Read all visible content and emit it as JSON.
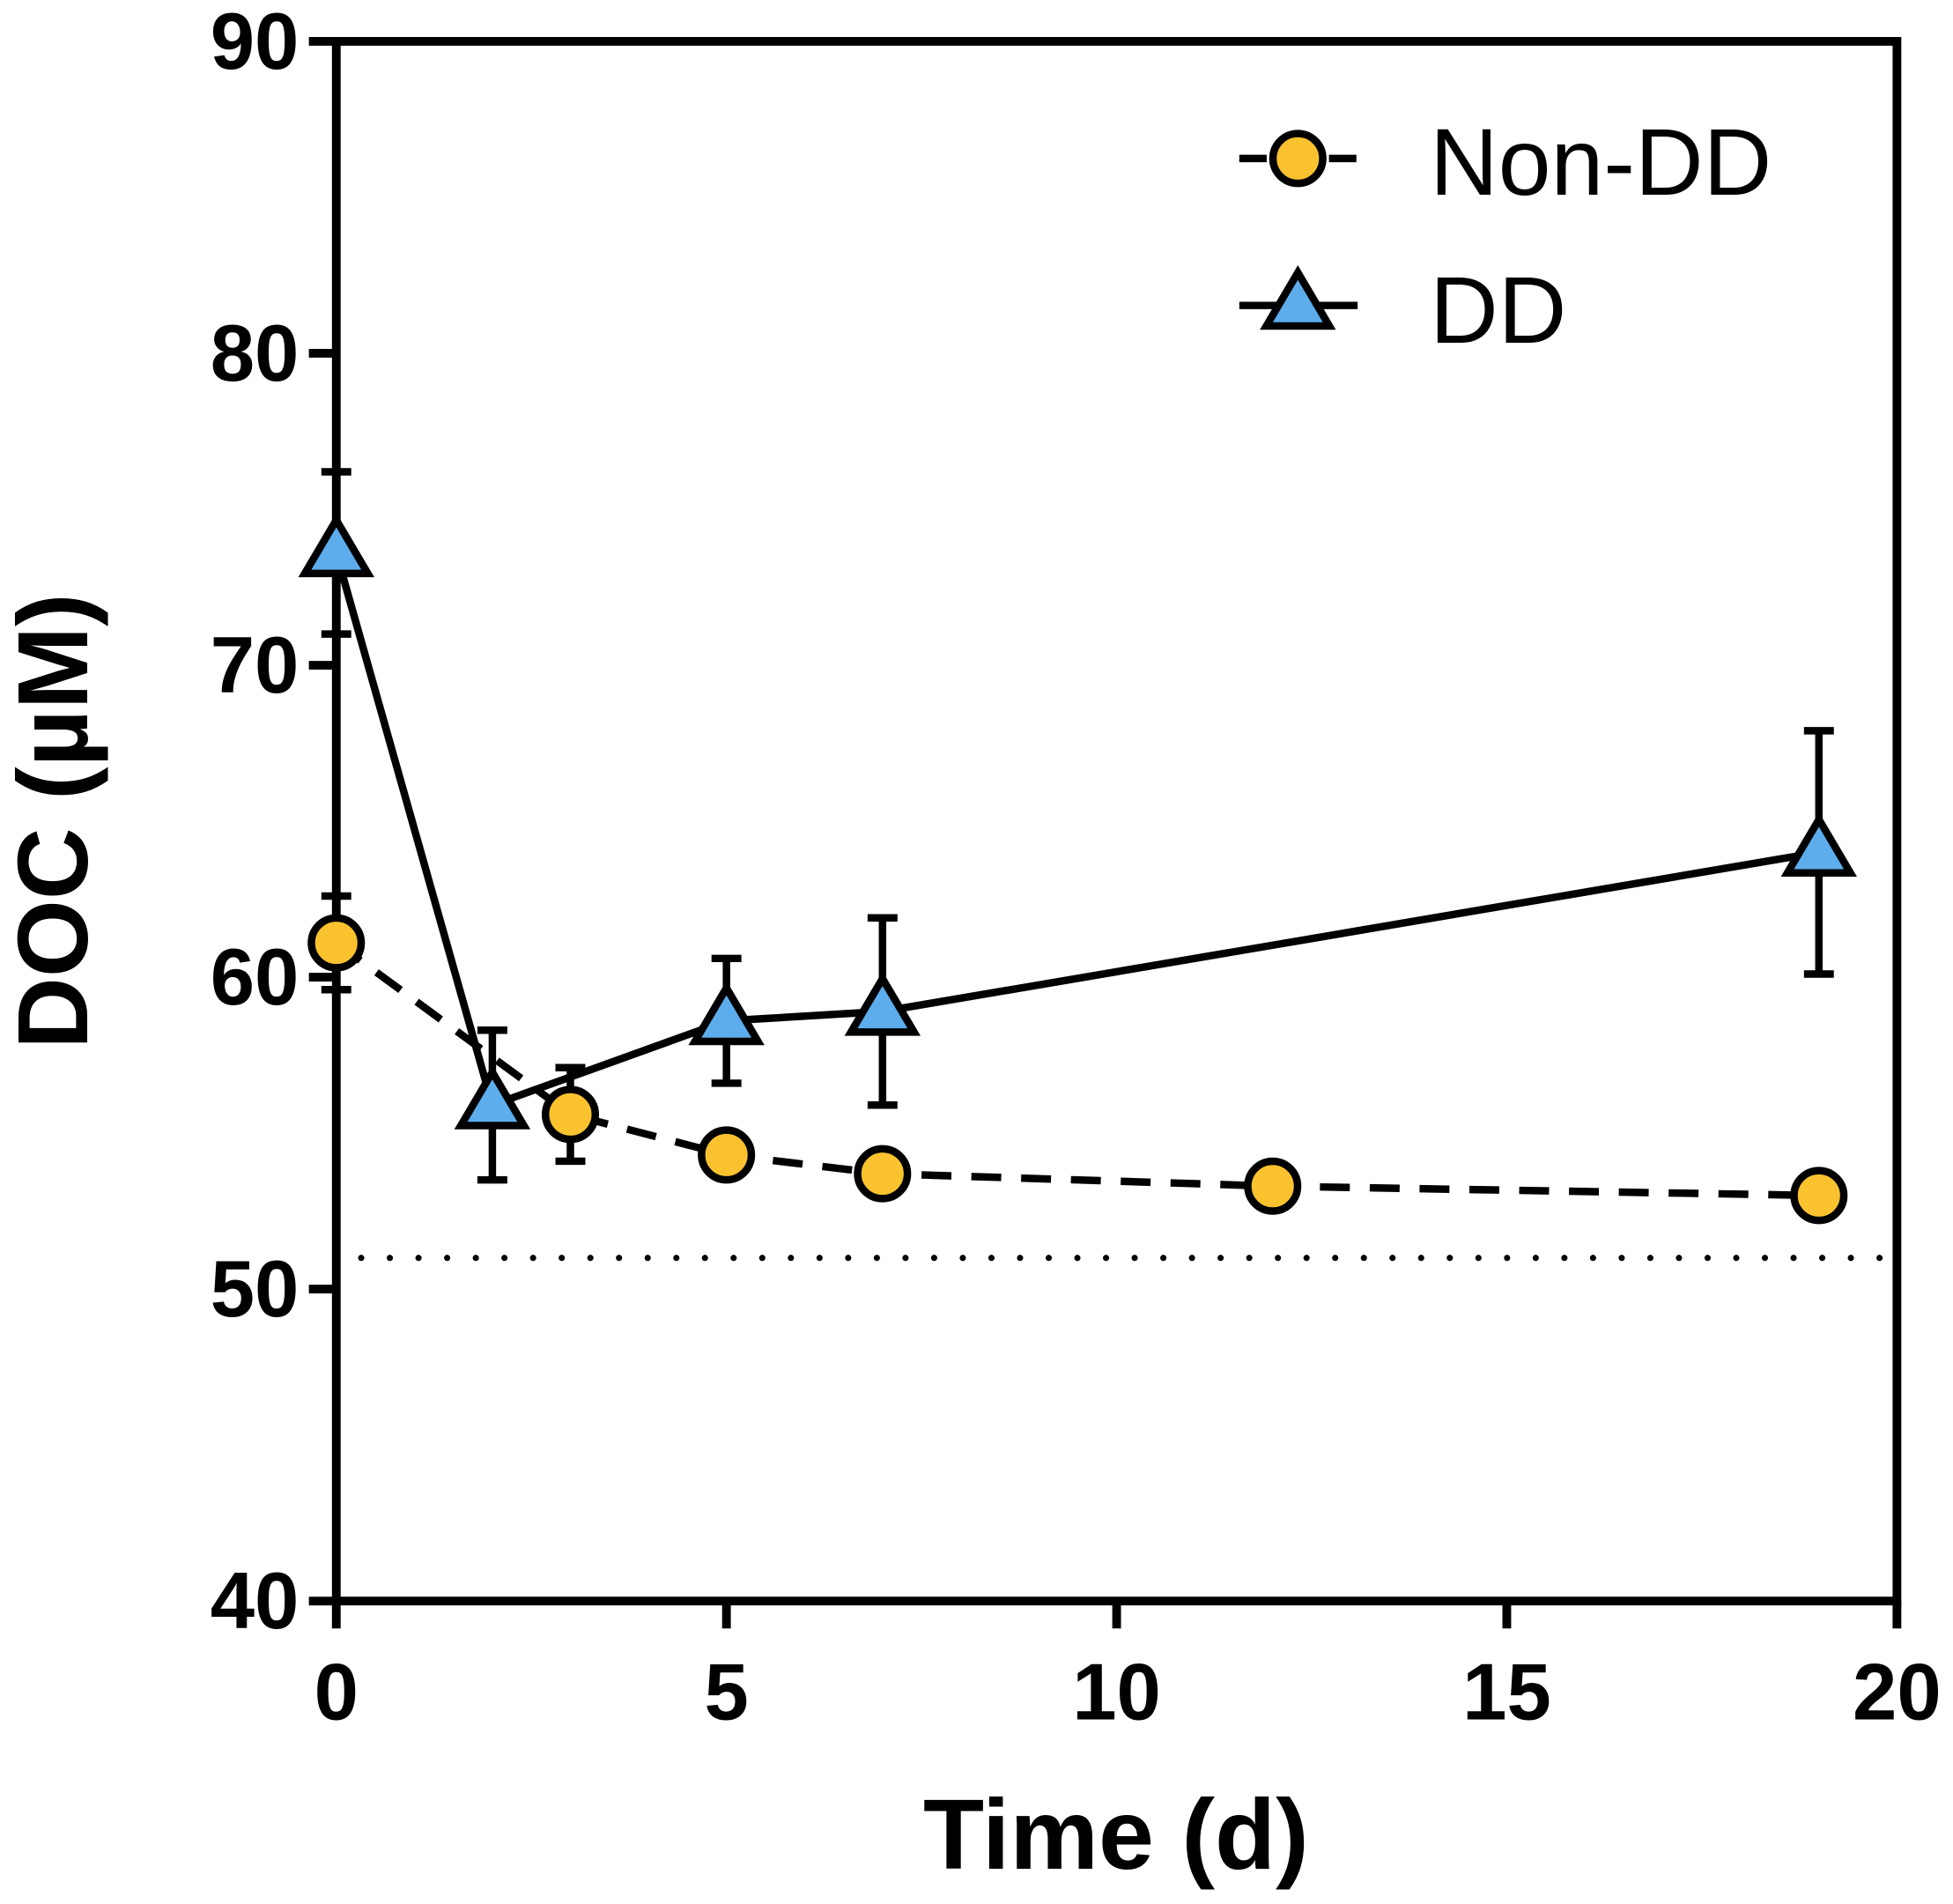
{
  "chart_data": {
    "type": "line",
    "title": "",
    "xlabel": "Time (d)",
    "ylabel": "DOC (µM)",
    "xlim": [
      0,
      20
    ],
    "ylim": [
      40,
      90
    ],
    "xticks": [
      "0",
      "5",
      "10",
      "15",
      "20"
    ],
    "yticks": [
      "40",
      "50",
      "60",
      "70",
      "80",
      "90"
    ],
    "legend_position": "top-right",
    "reference_line": {
      "y": 51,
      "style": "dotted"
    },
    "series": [
      {
        "name": "Non-DD",
        "marker": "circle",
        "line": "dashed",
        "color": "#F9C22E",
        "x": [
          0,
          3,
          5,
          7,
          12,
          19
        ],
        "y": [
          61.1,
          55.6,
          54.3,
          53.7,
          53.3,
          53.0
        ],
        "err": [
          1.5,
          1.5,
          0.3,
          0.3,
          0.6,
          0.3
        ]
      },
      {
        "name": "DD",
        "marker": "triangle",
        "line": "solid",
        "color": "#5DADEC",
        "x": [
          0,
          2,
          5,
          7,
          19
        ],
        "y": [
          73.6,
          55.9,
          58.6,
          58.9,
          64.0
        ],
        "err": [
          2.6,
          2.4,
          2.0,
          3.0,
          3.9
        ]
      }
    ]
  }
}
